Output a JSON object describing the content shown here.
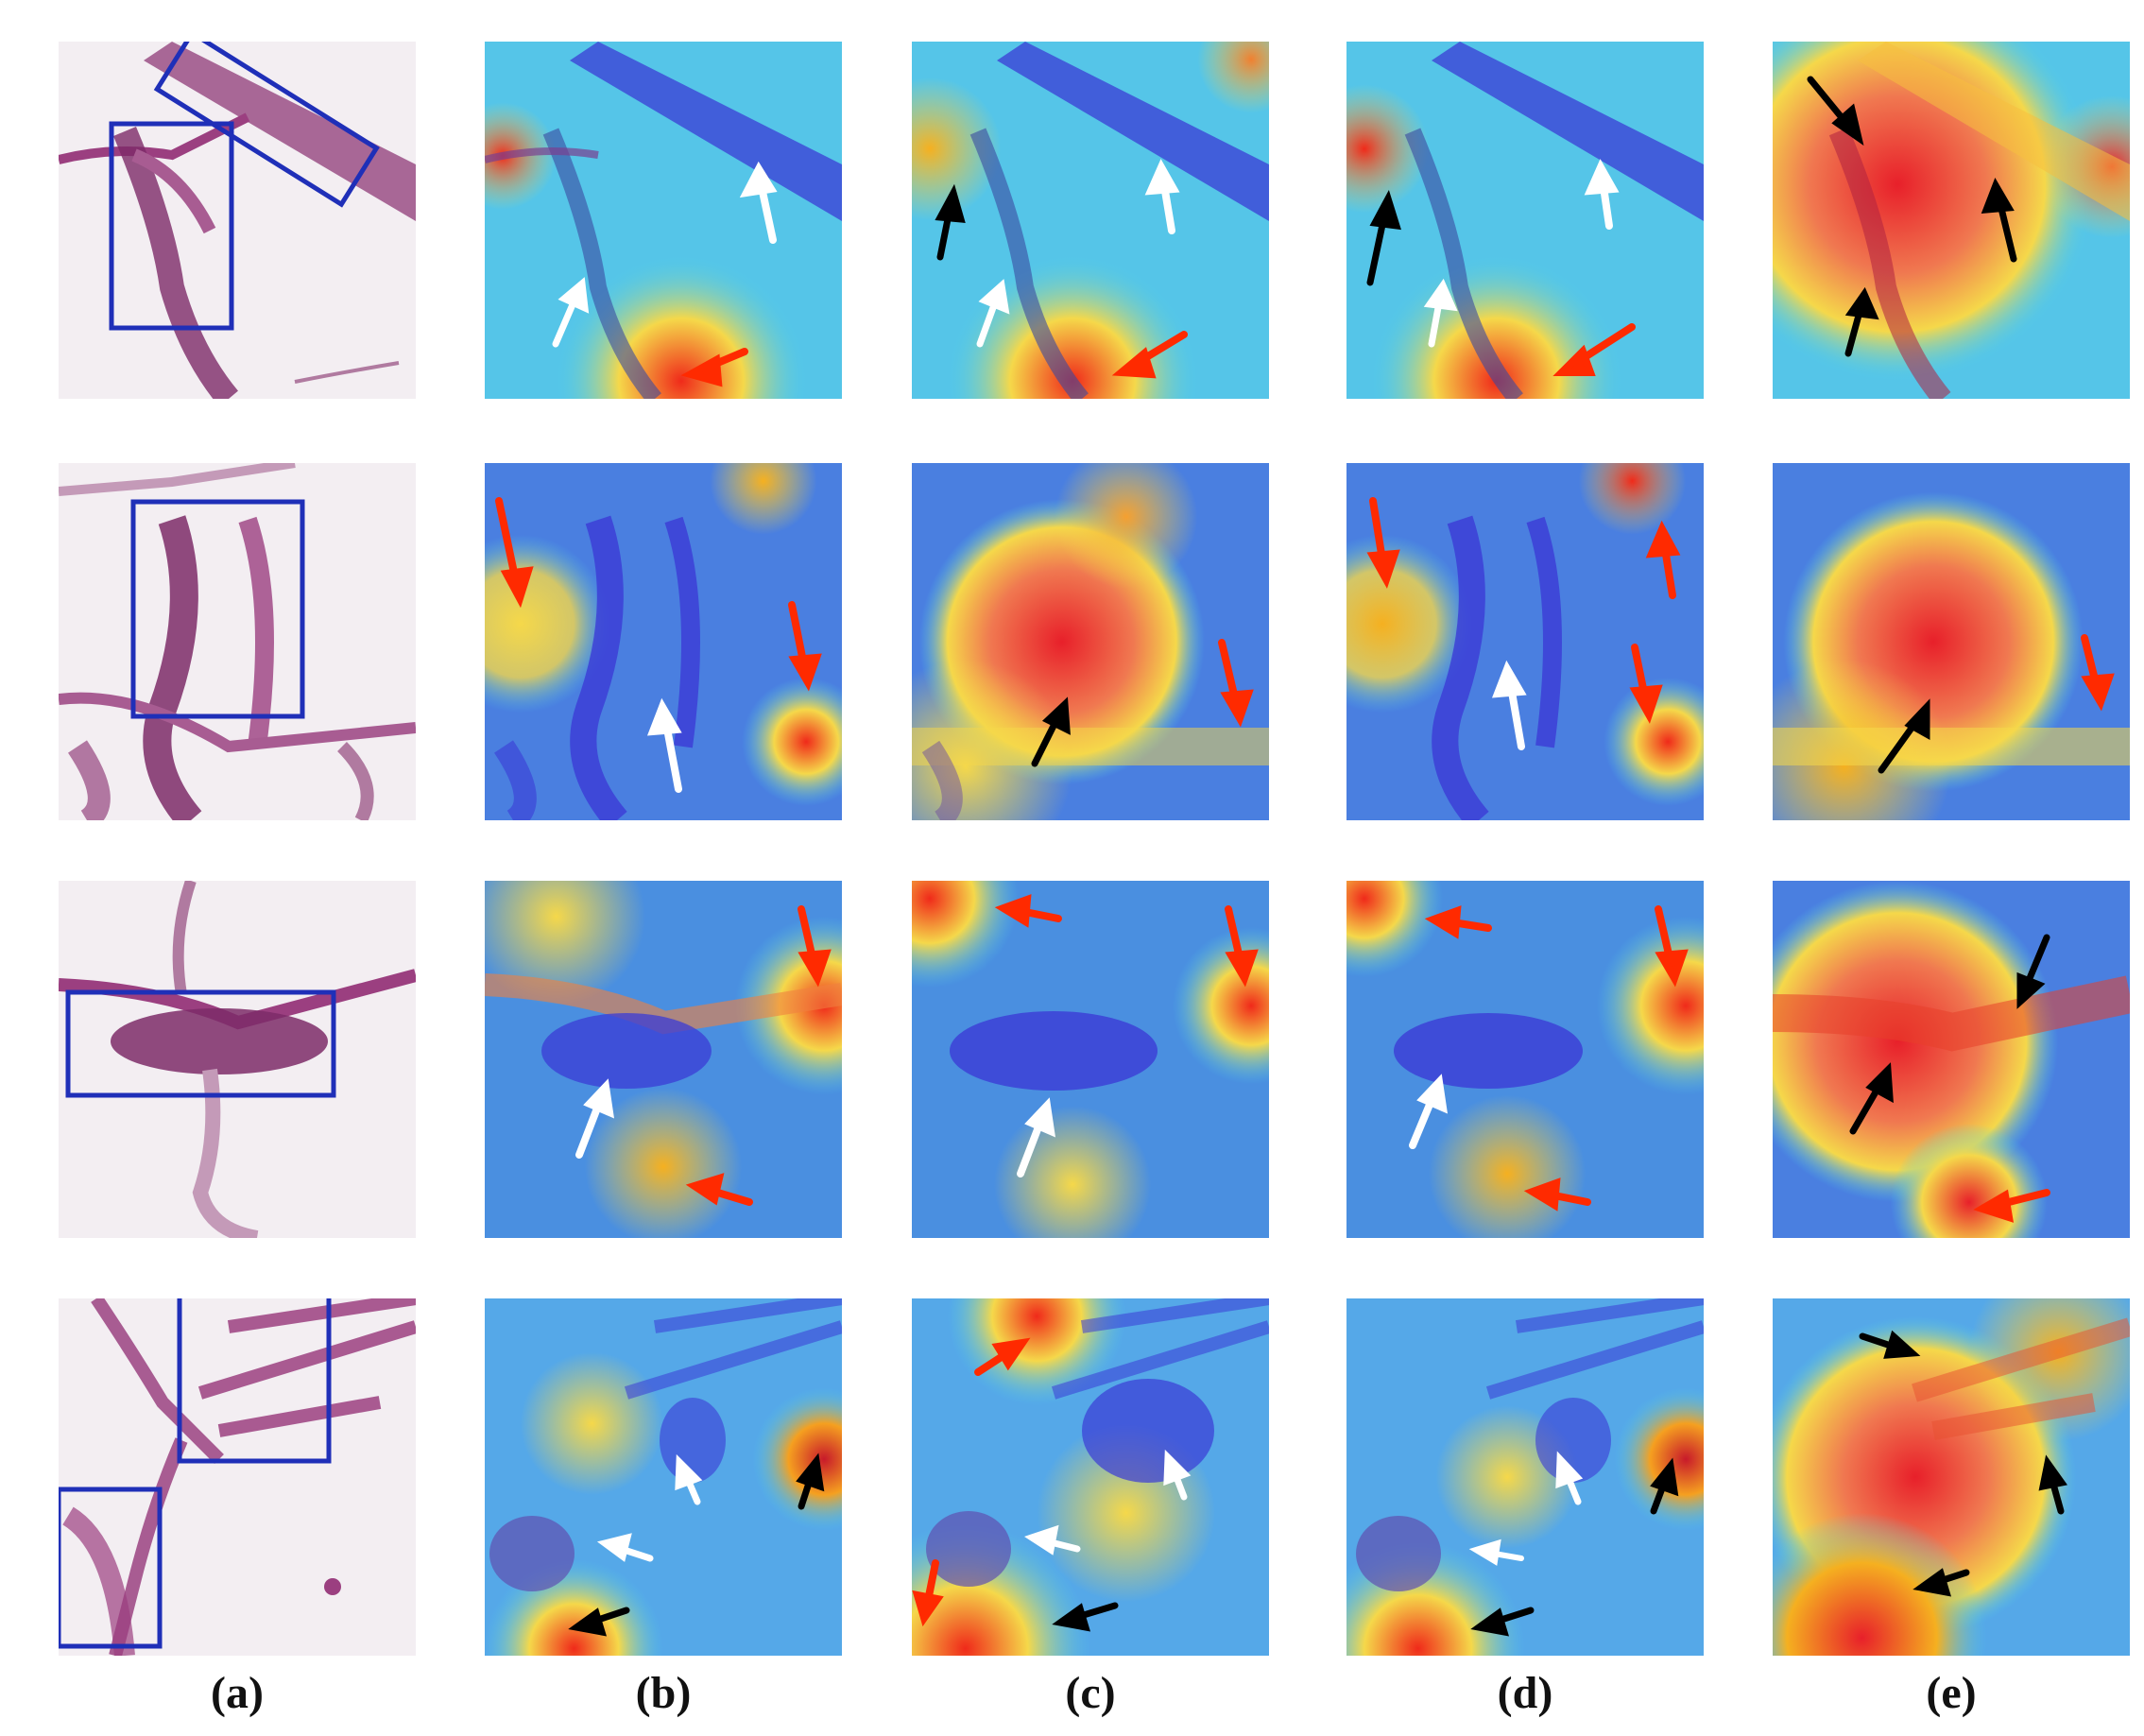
{
  "figure": {
    "columns": [
      {
        "label": "(a)",
        "kind": "original"
      },
      {
        "label": "(b)",
        "kind": "heatmap"
      },
      {
        "label": "(c)",
        "kind": "heatmap"
      },
      {
        "label": "(d)",
        "kind": "heatmap"
      },
      {
        "label": "(e)",
        "kind": "heatmap"
      }
    ],
    "rows": 4,
    "colors": {
      "box": "#1f2fb8",
      "arrow_red": "#ff2a00",
      "arrow_white": "#ffffff",
      "arrow_black": "#000000",
      "heat_low": "#3b3bd6",
      "heat_mid": "#4fd0e8",
      "heat_high": "#f02a1a",
      "tissue": "#8a2e72"
    }
  }
}
